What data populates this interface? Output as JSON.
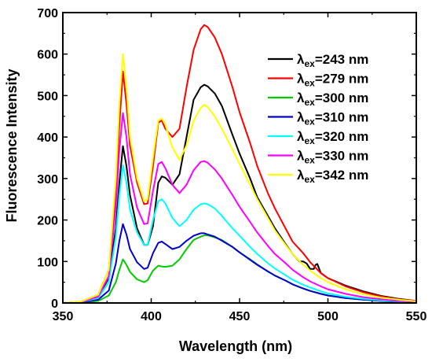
{
  "chart_data": {
    "type": "line",
    "xlabel": "Wavelength (nm)",
    "ylabel": "Fluorescence Intensity",
    "xlim": [
      350,
      550
    ],
    "ylim": [
      0,
      700
    ],
    "x_ticks": [
      "350",
      "400",
      "450",
      "500",
      "550"
    ],
    "y_ticks": [
      "0",
      "100",
      "200",
      "300",
      "400",
      "500",
      "600",
      "700"
    ],
    "legend_position": "upper-right",
    "grid": false,
    "series": [
      {
        "name": "λex=243 nm",
        "label_prefix": "λ",
        "label_sub": "ex",
        "label_suffix": "=243 nm",
        "color": "#000000",
        "points": [
          [
            350,
            0
          ],
          [
            360,
            2
          ],
          [
            370,
            15
          ],
          [
            376,
            60
          ],
          [
            380,
            180
          ],
          [
            382,
            290
          ],
          [
            384,
            378
          ],
          [
            386,
            330
          ],
          [
            388,
            260
          ],
          [
            392,
            180
          ],
          [
            396,
            140
          ],
          [
            398,
            140
          ],
          [
            401,
            185
          ],
          [
            404,
            290
          ],
          [
            406,
            305
          ],
          [
            408,
            302
          ],
          [
            412,
            285
          ],
          [
            416,
            310
          ],
          [
            420,
            400
          ],
          [
            424,
            490
          ],
          [
            428,
            520
          ],
          [
            430,
            526
          ],
          [
            432,
            522
          ],
          [
            436,
            505
          ],
          [
            440,
            475
          ],
          [
            446,
            405
          ],
          [
            450,
            360
          ],
          [
            456,
            300
          ],
          [
            460,
            255
          ],
          [
            466,
            210
          ],
          [
            470,
            180
          ],
          [
            476,
            142
          ],
          [
            480,
            118
          ],
          [
            484,
            100
          ],
          [
            486,
            100
          ],
          [
            488,
            95
          ],
          [
            490,
            82
          ],
          [
            492,
            82
          ],
          [
            493,
            92
          ],
          [
            494,
            94
          ],
          [
            496,
            72
          ],
          [
            500,
            60
          ],
          [
            510,
            42
          ],
          [
            520,
            28
          ],
          [
            530,
            17
          ],
          [
            540,
            10
          ],
          [
            550,
            5
          ]
        ]
      },
      {
        "name": "λex=279 nm",
        "label_prefix": "λ",
        "label_sub": "ex",
        "label_suffix": "=279 nm",
        "color": "#ff0000",
        "points": [
          [
            350,
            0
          ],
          [
            360,
            3
          ],
          [
            370,
            20
          ],
          [
            376,
            80
          ],
          [
            380,
            270
          ],
          [
            382,
            430
          ],
          [
            384,
            558
          ],
          [
            386,
            480
          ],
          [
            388,
            380
          ],
          [
            392,
            290
          ],
          [
            396,
            238
          ],
          [
            398,
            240
          ],
          [
            401,
            330
          ],
          [
            404,
            435
          ],
          [
            406,
            440
          ],
          [
            408,
            420
          ],
          [
            412,
            400
          ],
          [
            416,
            420
          ],
          [
            420,
            520
          ],
          [
            424,
            610
          ],
          [
            428,
            660
          ],
          [
            430,
            670
          ],
          [
            432,
            665
          ],
          [
            436,
            640
          ],
          [
            440,
            600
          ],
          [
            446,
            520
          ],
          [
            450,
            460
          ],
          [
            456,
            385
          ],
          [
            460,
            330
          ],
          [
            466,
            265
          ],
          [
            470,
            228
          ],
          [
            476,
            180
          ],
          [
            480,
            148
          ],
          [
            486,
            120
          ],
          [
            490,
            98
          ],
          [
            496,
            72
          ],
          [
            500,
            60
          ],
          [
            510,
            40
          ],
          [
            520,
            26
          ],
          [
            530,
            16
          ],
          [
            540,
            9
          ],
          [
            550,
            5
          ]
        ]
      },
      {
        "name": "λex=300 nm",
        "label_prefix": "λ",
        "label_sub": "ex",
        "label_suffix": "=300 nm",
        "color": "#00cc00",
        "points": [
          [
            350,
            0
          ],
          [
            360,
            1
          ],
          [
            370,
            5
          ],
          [
            376,
            18
          ],
          [
            380,
            50
          ],
          [
            382,
            80
          ],
          [
            384,
            105
          ],
          [
            386,
            92
          ],
          [
            388,
            75
          ],
          [
            392,
            57
          ],
          [
            396,
            50
          ],
          [
            398,
            55
          ],
          [
            401,
            78
          ],
          [
            404,
            90
          ],
          [
            406,
            88
          ],
          [
            408,
            87
          ],
          [
            412,
            90
          ],
          [
            416,
            105
          ],
          [
            420,
            130
          ],
          [
            424,
            152
          ],
          [
            428,
            160
          ],
          [
            430,
            163
          ],
          [
            432,
            163
          ],
          [
            436,
            158
          ],
          [
            440,
            152
          ],
          [
            446,
            135
          ],
          [
            450,
            122
          ],
          [
            456,
            105
          ],
          [
            460,
            93
          ],
          [
            466,
            76
          ],
          [
            470,
            66
          ],
          [
            476,
            54
          ],
          [
            480,
            45
          ],
          [
            486,
            35
          ],
          [
            490,
            29
          ],
          [
            496,
            22
          ],
          [
            500,
            18
          ],
          [
            510,
            12
          ],
          [
            520,
            8
          ],
          [
            530,
            5
          ],
          [
            540,
            3
          ],
          [
            550,
            2
          ]
        ]
      },
      {
        "name": "λex=310 nm",
        "label_prefix": "λ",
        "label_sub": "ex",
        "label_suffix": "=310 nm",
        "color": "#0000cc",
        "points": [
          [
            350,
            0
          ],
          [
            360,
            1
          ],
          [
            370,
            8
          ],
          [
            376,
            30
          ],
          [
            380,
            95
          ],
          [
            382,
            150
          ],
          [
            384,
            190
          ],
          [
            386,
            165
          ],
          [
            388,
            130
          ],
          [
            392,
            98
          ],
          [
            396,
            82
          ],
          [
            398,
            85
          ],
          [
            401,
            120
          ],
          [
            404,
            145
          ],
          [
            406,
            148
          ],
          [
            408,
            142
          ],
          [
            412,
            130
          ],
          [
            416,
            135
          ],
          [
            420,
            150
          ],
          [
            424,
            162
          ],
          [
            428,
            168
          ],
          [
            430,
            168
          ],
          [
            432,
            165
          ],
          [
            436,
            160
          ],
          [
            440,
            150
          ],
          [
            446,
            135
          ],
          [
            450,
            122
          ],
          [
            456,
            104
          ],
          [
            460,
            92
          ],
          [
            466,
            76
          ],
          [
            470,
            66
          ],
          [
            476,
            54
          ],
          [
            480,
            45
          ],
          [
            486,
            35
          ],
          [
            490,
            29
          ],
          [
            496,
            22
          ],
          [
            500,
            18
          ],
          [
            510,
            12
          ],
          [
            520,
            8
          ],
          [
            530,
            5
          ],
          [
            540,
            3
          ],
          [
            550,
            2
          ]
        ]
      },
      {
        "name": "λex=320 nm",
        "label_prefix": "λ",
        "label_sub": "ex",
        "label_suffix": "=320 nm",
        "color": "#00ffff",
        "points": [
          [
            350,
            0
          ],
          [
            360,
            2
          ],
          [
            370,
            12
          ],
          [
            376,
            50
          ],
          [
            380,
            160
          ],
          [
            382,
            260
          ],
          [
            384,
            332
          ],
          [
            386,
            290
          ],
          [
            388,
            225
          ],
          [
            392,
            170
          ],
          [
            396,
            140
          ],
          [
            398,
            140
          ],
          [
            401,
            200
          ],
          [
            404,
            245
          ],
          [
            406,
            250
          ],
          [
            408,
            240
          ],
          [
            412,
            205
          ],
          [
            416,
            185
          ],
          [
            420,
            200
          ],
          [
            424,
            225
          ],
          [
            428,
            238
          ],
          [
            430,
            240
          ],
          [
            432,
            238
          ],
          [
            436,
            228
          ],
          [
            440,
            210
          ],
          [
            446,
            180
          ],
          [
            450,
            162
          ],
          [
            456,
            135
          ],
          [
            460,
            118
          ],
          [
            466,
            96
          ],
          [
            470,
            83
          ],
          [
            476,
            67
          ],
          [
            480,
            56
          ],
          [
            486,
            44
          ],
          [
            490,
            37
          ],
          [
            496,
            28
          ],
          [
            500,
            23
          ],
          [
            510,
            15
          ],
          [
            520,
            10
          ],
          [
            530,
            6
          ],
          [
            540,
            4
          ],
          [
            550,
            2
          ]
        ]
      },
      {
        "name": "λex=330 nm",
        "label_prefix": "λ",
        "label_sub": "ex",
        "label_suffix": "=330 nm",
        "color": "#ff00ff",
        "points": [
          [
            350,
            0
          ],
          [
            360,
            2
          ],
          [
            370,
            15
          ],
          [
            376,
            65
          ],
          [
            380,
            230
          ],
          [
            382,
            370
          ],
          [
            384,
            458
          ],
          [
            386,
            400
          ],
          [
            388,
            310
          ],
          [
            392,
            230
          ],
          [
            396,
            190
          ],
          [
            398,
            192
          ],
          [
            401,
            270
          ],
          [
            404,
            335
          ],
          [
            406,
            340
          ],
          [
            408,
            325
          ],
          [
            412,
            285
          ],
          [
            416,
            265
          ],
          [
            420,
            285
          ],
          [
            424,
            320
          ],
          [
            428,
            340
          ],
          [
            430,
            342
          ],
          [
            432,
            338
          ],
          [
            436,
            322
          ],
          [
            440,
            300
          ],
          [
            446,
            260
          ],
          [
            450,
            232
          ],
          [
            456,
            195
          ],
          [
            460,
            170
          ],
          [
            466,
            138
          ],
          [
            470,
            118
          ],
          [
            476,
            96
          ],
          [
            480,
            80
          ],
          [
            486,
            62
          ],
          [
            490,
            52
          ],
          [
            496,
            40
          ],
          [
            500,
            33
          ],
          [
            510,
            22
          ],
          [
            520,
            14
          ],
          [
            530,
            9
          ],
          [
            540,
            5
          ],
          [
            550,
            3
          ]
        ]
      },
      {
        "name": "λex=342 nm",
        "label_prefix": "λ",
        "label_sub": "ex",
        "label_suffix": "=342 nm",
        "color": "#ffff00",
        "points": [
          [
            350,
            0
          ],
          [
            360,
            3
          ],
          [
            370,
            20
          ],
          [
            376,
            80
          ],
          [
            380,
            300
          ],
          [
            382,
            480
          ],
          [
            384,
            600
          ],
          [
            386,
            520
          ],
          [
            388,
            400
          ],
          [
            392,
            300
          ],
          [
            396,
            245
          ],
          [
            398,
            250
          ],
          [
            401,
            350
          ],
          [
            404,
            440
          ],
          [
            406,
            445
          ],
          [
            408,
            430
          ],
          [
            412,
            375
          ],
          [
            416,
            345
          ],
          [
            420,
            380
          ],
          [
            424,
            440
          ],
          [
            428,
            470
          ],
          [
            430,
            478
          ],
          [
            432,
            472
          ],
          [
            436,
            450
          ],
          [
            440,
            420
          ],
          [
            446,
            370
          ],
          [
            450,
            335
          ],
          [
            456,
            285
          ],
          [
            460,
            250
          ],
          [
            466,
            205
          ],
          [
            470,
            175
          ],
          [
            476,
            140
          ],
          [
            480,
            118
          ],
          [
            486,
            92
          ],
          [
            490,
            78
          ],
          [
            496,
            60
          ],
          [
            500,
            50
          ],
          [
            510,
            33
          ],
          [
            520,
            21
          ],
          [
            530,
            13
          ],
          [
            540,
            8
          ],
          [
            550,
            4
          ]
        ]
      }
    ]
  }
}
